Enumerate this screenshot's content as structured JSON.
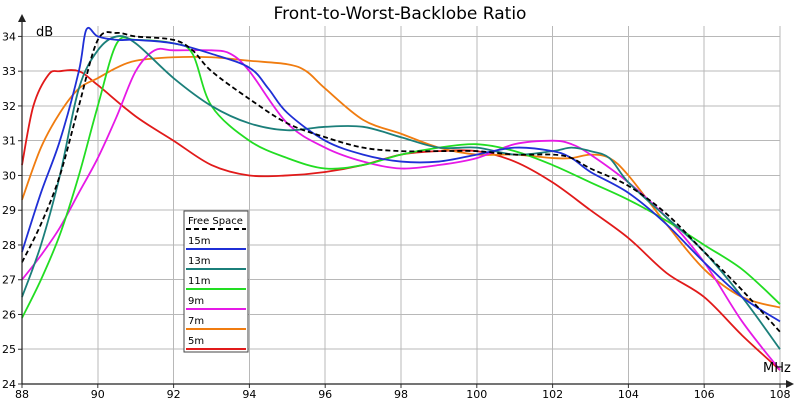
{
  "chart_data": {
    "type": "line",
    "title": "Front-to-Worst-Backlobe Ratio",
    "xlabel": "MHz",
    "ylabel": "dB",
    "xlim": [
      88,
      108
    ],
    "ylim": [
      24,
      34.3
    ],
    "x_ticks": [
      88,
      90,
      92,
      94,
      96,
      98,
      100,
      102,
      104,
      106,
      108
    ],
    "y_ticks": [
      24,
      25,
      26,
      27,
      28,
      29,
      30,
      31,
      32,
      33,
      34
    ],
    "grid": true,
    "legend_position": "lower-left",
    "series": [
      {
        "name": "Free Space",
        "color": "#000000",
        "dashed": true,
        "points": [
          [
            88,
            27.5
          ],
          [
            88.5,
            28.6
          ],
          [
            89,
            30.0
          ],
          [
            89.5,
            32.0
          ],
          [
            90,
            33.9
          ],
          [
            90.5,
            34.1
          ],
          [
            91,
            34.0
          ],
          [
            92,
            33.9
          ],
          [
            92.5,
            33.6
          ],
          [
            93,
            33.0
          ],
          [
            94,
            32.2
          ],
          [
            95,
            31.5
          ],
          [
            96,
            31.1
          ],
          [
            97,
            30.8
          ],
          [
            98,
            30.7
          ],
          [
            99,
            30.7
          ],
          [
            100,
            30.7
          ],
          [
            101,
            30.6
          ],
          [
            102,
            30.6
          ],
          [
            102.5,
            30.5
          ],
          [
            103,
            30.2
          ],
          [
            104,
            29.7
          ],
          [
            105,
            28.9
          ],
          [
            106,
            27.8
          ],
          [
            107,
            26.7
          ],
          [
            108,
            25.5
          ]
        ]
      },
      {
        "name": "15m",
        "color": "#1f2fd6",
        "points": [
          [
            88,
            27.8
          ],
          [
            88.5,
            29.5
          ],
          [
            89,
            31.0
          ],
          [
            89.5,
            33.0
          ],
          [
            89.7,
            34.2
          ],
          [
            90,
            34.0
          ],
          [
            90.5,
            33.9
          ],
          [
            91,
            33.9
          ],
          [
            92,
            33.8
          ],
          [
            93,
            33.5
          ],
          [
            94,
            33.1
          ],
          [
            94.5,
            32.5
          ],
          [
            95,
            31.8
          ],
          [
            96,
            31.0
          ],
          [
            97,
            30.6
          ],
          [
            98,
            30.4
          ],
          [
            99,
            30.4
          ],
          [
            100,
            30.6
          ],
          [
            101,
            30.8
          ],
          [
            102,
            30.7
          ],
          [
            102.5,
            30.5
          ],
          [
            103,
            30.1
          ],
          [
            104,
            29.5
          ],
          [
            105,
            28.6
          ],
          [
            106,
            27.5
          ],
          [
            107,
            26.5
          ],
          [
            108,
            25.8
          ]
        ]
      },
      {
        "name": "13m",
        "color": "#1b7f7a",
        "points": [
          [
            88,
            26.5
          ],
          [
            88.5,
            28.0
          ],
          [
            89,
            30.0
          ],
          [
            89.5,
            32.5
          ],
          [
            90,
            33.6
          ],
          [
            90.5,
            34.0
          ],
          [
            91,
            33.8
          ],
          [
            92,
            32.8
          ],
          [
            93,
            32.0
          ],
          [
            94,
            31.5
          ],
          [
            95,
            31.3
          ],
          [
            96,
            31.4
          ],
          [
            97,
            31.4
          ],
          [
            98,
            31.1
          ],
          [
            99,
            30.8
          ],
          [
            100,
            30.8
          ],
          [
            101,
            30.6
          ],
          [
            102,
            30.7
          ],
          [
            102.5,
            30.8
          ],
          [
            103,
            30.7
          ],
          [
            103.5,
            30.5
          ],
          [
            104,
            29.8
          ],
          [
            105,
            28.8
          ],
          [
            106,
            27.8
          ],
          [
            107,
            26.5
          ],
          [
            108,
            25.0
          ]
        ]
      },
      {
        "name": "11m",
        "color": "#22dd22",
        "points": [
          [
            88,
            25.9
          ],
          [
            88.5,
            27.0
          ],
          [
            89,
            28.3
          ],
          [
            89.5,
            30.0
          ],
          [
            90,
            32.0
          ],
          [
            90.5,
            33.8
          ],
          [
            91,
            33.9
          ],
          [
            92,
            33.8
          ],
          [
            92.5,
            33.5
          ],
          [
            93,
            32.0
          ],
          [
            94,
            31.0
          ],
          [
            95,
            30.5
          ],
          [
            96,
            30.2
          ],
          [
            97,
            30.3
          ],
          [
            98,
            30.6
          ],
          [
            99,
            30.8
          ],
          [
            100,
            30.9
          ],
          [
            101,
            30.7
          ],
          [
            102,
            30.3
          ],
          [
            103,
            29.8
          ],
          [
            104,
            29.3
          ],
          [
            105,
            28.7
          ],
          [
            106,
            28.0
          ],
          [
            107,
            27.3
          ],
          [
            108,
            26.3
          ]
        ]
      },
      {
        "name": "9m",
        "color": "#e619e6",
        "points": [
          [
            88,
            27.0
          ],
          [
            88.5,
            27.7
          ],
          [
            89,
            28.5
          ],
          [
            89.5,
            29.5
          ],
          [
            90,
            30.5
          ],
          [
            90.5,
            31.7
          ],
          [
            91,
            33.0
          ],
          [
            91.5,
            33.6
          ],
          [
            92,
            33.6
          ],
          [
            93,
            33.6
          ],
          [
            93.5,
            33.5
          ],
          [
            94,
            33.0
          ],
          [
            95,
            31.5
          ],
          [
            96,
            30.8
          ],
          [
            97,
            30.4
          ],
          [
            98,
            30.2
          ],
          [
            99,
            30.3
          ],
          [
            100,
            30.5
          ],
          [
            101,
            30.9
          ],
          [
            102,
            31.0
          ],
          [
            102.5,
            30.9
          ],
          [
            103,
            30.6
          ],
          [
            104,
            29.8
          ],
          [
            105,
            28.8
          ],
          [
            106,
            27.5
          ],
          [
            107,
            25.8
          ],
          [
            108,
            24.4
          ]
        ]
      },
      {
        "name": "7m",
        "color": "#f07c10",
        "points": [
          [
            88,
            29.3
          ],
          [
            88.5,
            30.8
          ],
          [
            89,
            31.8
          ],
          [
            89.5,
            32.5
          ],
          [
            90,
            32.8
          ],
          [
            90.5,
            33.1
          ],
          [
            91,
            33.3
          ],
          [
            92,
            33.4
          ],
          [
            93,
            33.4
          ],
          [
            94,
            33.3
          ],
          [
            95,
            33.2
          ],
          [
            95.5,
            33.0
          ],
          [
            96,
            32.5
          ],
          [
            97,
            31.6
          ],
          [
            98,
            31.2
          ],
          [
            99,
            30.8
          ],
          [
            100,
            30.6
          ],
          [
            101,
            30.6
          ],
          [
            102,
            30.5
          ],
          [
            102.5,
            30.5
          ],
          [
            103,
            30.6
          ],
          [
            103.5,
            30.5
          ],
          [
            104,
            30.0
          ],
          [
            105,
            28.6
          ],
          [
            106,
            27.3
          ],
          [
            107,
            26.5
          ],
          [
            108,
            26.2
          ]
        ]
      },
      {
        "name": "5m",
        "color": "#e11a1a",
        "points": [
          [
            88,
            30.3
          ],
          [
            88.3,
            32.0
          ],
          [
            88.7,
            32.9
          ],
          [
            89,
            33.0
          ],
          [
            89.5,
            33.0
          ],
          [
            90,
            32.6
          ],
          [
            91,
            31.7
          ],
          [
            92,
            31.0
          ],
          [
            93,
            30.3
          ],
          [
            94,
            30.0
          ],
          [
            95,
            30.0
          ],
          [
            96,
            30.1
          ],
          [
            97,
            30.3
          ],
          [
            98,
            30.6
          ],
          [
            99,
            30.7
          ],
          [
            100,
            30.7
          ],
          [
            101,
            30.4
          ],
          [
            102,
            29.8
          ],
          [
            103,
            29.0
          ],
          [
            104,
            28.2
          ],
          [
            105,
            27.2
          ],
          [
            106,
            26.5
          ],
          [
            107,
            25.4
          ],
          [
            108,
            24.4
          ]
        ]
      }
    ]
  }
}
